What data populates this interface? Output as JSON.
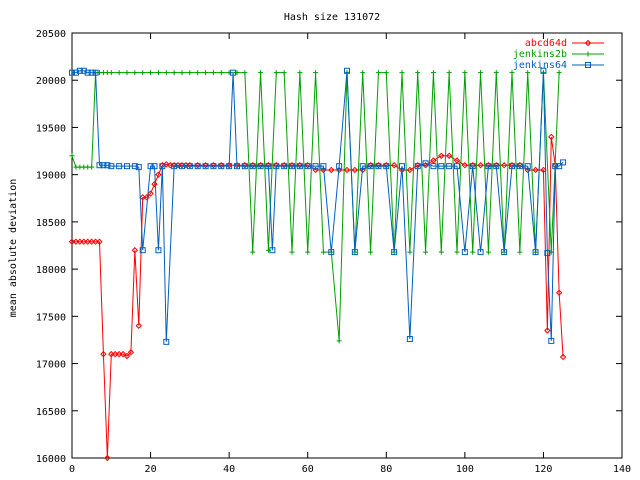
{
  "chart_data": {
    "type": "line",
    "title": "Hash size 131072",
    "xlabel": "",
    "ylabel": "mean absolute deviation",
    "xlim": [
      0,
      140
    ],
    "ylim": [
      16000,
      20500
    ],
    "xticks": [
      0,
      20,
      40,
      60,
      80,
      100,
      120,
      140
    ],
    "yticks": [
      16000,
      16500,
      17000,
      17500,
      18000,
      18500,
      19000,
      19500,
      20000,
      20500
    ],
    "grid": false,
    "legend_position": "top-right",
    "series": [
      {
        "name": "abcd64d",
        "color": "#ff0000",
        "marker": "diamond",
        "x": [
          0,
          1,
          2,
          3,
          4,
          5,
          6,
          7,
          8,
          9,
          10,
          11,
          12,
          13,
          14,
          15,
          16,
          17,
          18,
          19,
          20,
          21,
          22,
          23,
          24,
          25,
          26,
          27,
          28,
          29,
          30,
          32,
          34,
          36,
          38,
          40,
          42,
          44,
          46,
          48,
          50,
          52,
          54,
          56,
          58,
          60,
          62,
          64,
          66,
          68,
          70,
          72,
          74,
          76,
          78,
          80,
          82,
          84,
          86,
          88,
          90,
          92,
          94,
          96,
          98,
          100,
          102,
          104,
          106,
          108,
          110,
          112,
          114,
          116,
          118,
          120,
          121,
          122,
          123,
          124,
          125
        ],
        "values": [
          18290,
          18290,
          18290,
          18290,
          18290,
          18290,
          18290,
          18290,
          17100,
          16000,
          17100,
          17100,
          17100,
          17100,
          17080,
          17120,
          18200,
          17400,
          18760,
          18760,
          18800,
          18900,
          19000,
          19100,
          19110,
          19100,
          19100,
          19100,
          19100,
          19100,
          19100,
          19100,
          19100,
          19100,
          19100,
          19100,
          19100,
          19100,
          19100,
          19100,
          19100,
          19100,
          19100,
          19100,
          19100,
          19100,
          19050,
          19050,
          19050,
          19050,
          19050,
          19050,
          19050,
          19100,
          19100,
          19100,
          19100,
          19050,
          19050,
          19100,
          19100,
          19150,
          19200,
          19200,
          19150,
          19100,
          19100,
          19100,
          19100,
          19100,
          19100,
          19100,
          19100,
          19050,
          19050,
          19050,
          17350,
          19400,
          19100,
          17750,
          17070
        ]
      },
      {
        "name": "jenkins2b",
        "color": "#00a000",
        "marker": "plus",
        "x": [
          0,
          1,
          2,
          3,
          4,
          5,
          6,
          7,
          8,
          9,
          10,
          12,
          14,
          16,
          18,
          20,
          22,
          24,
          26,
          28,
          30,
          32,
          34,
          36,
          38,
          40,
          42,
          44,
          46,
          48,
          50,
          52,
          54,
          56,
          58,
          60,
          62,
          64,
          66,
          68,
          70,
          72,
          74,
          76,
          78,
          80,
          82,
          84,
          86,
          88,
          90,
          92,
          94,
          96,
          98,
          100,
          102,
          104,
          106,
          108,
          110,
          112,
          114,
          116,
          118,
          120,
          122,
          124
        ],
        "values": [
          19200,
          19080,
          19080,
          19080,
          19080,
          19080,
          20080,
          20080,
          20080,
          20080,
          20080,
          20080,
          20080,
          20080,
          20080,
          20080,
          20080,
          20080,
          20080,
          20080,
          20080,
          20080,
          20080,
          20080,
          20080,
          20080,
          20080,
          20080,
          18180,
          20080,
          18200,
          20080,
          20080,
          18180,
          20080,
          18180,
          20080,
          18180,
          18180,
          17240,
          20080,
          18180,
          20080,
          18180,
          20080,
          20080,
          18180,
          20080,
          18180,
          20080,
          18180,
          20080,
          18180,
          20080,
          18180,
          20080,
          18180,
          20080,
          18180,
          20080,
          18180,
          20080,
          18180,
          20080,
          18180,
          20080,
          18180,
          20080
        ]
      },
      {
        "name": "jenkins64",
        "color": "#0060c0",
        "marker": "square",
        "x": [
          0,
          1,
          2,
          3,
          4,
          5,
          6,
          7,
          8,
          9,
          10,
          12,
          14,
          16,
          17,
          18,
          20,
          21,
          22,
          23,
          24,
          26,
          28,
          30,
          32,
          34,
          36,
          38,
          40,
          41,
          42,
          44,
          46,
          48,
          50,
          51,
          52,
          54,
          56,
          58,
          60,
          62,
          64,
          66,
          68,
          70,
          72,
          74,
          76,
          78,
          80,
          82,
          84,
          86,
          88,
          90,
          92,
          94,
          96,
          98,
          100,
          102,
          104,
          106,
          108,
          110,
          112,
          114,
          116,
          118,
          120,
          121,
          122,
          123,
          124,
          125
        ],
        "values": [
          20080,
          20080,
          20100,
          20100,
          20080,
          20080,
          20080,
          19100,
          19100,
          19100,
          19090,
          19090,
          19090,
          19090,
          19080,
          18200,
          19090,
          19090,
          18200,
          19090,
          17230,
          19090,
          19090,
          19090,
          19090,
          19090,
          19090,
          19090,
          19090,
          20080,
          19090,
          19090,
          19090,
          19090,
          19090,
          18200,
          19090,
          19090,
          19090,
          19090,
          19090,
          19090,
          19090,
          18180,
          19090,
          20100,
          18180,
          19090,
          19090,
          19090,
          19090,
          18180,
          19090,
          17260,
          19090,
          19120,
          19090,
          19090,
          19090,
          19090,
          18180,
          19090,
          18180,
          19090,
          19090,
          18180,
          19090,
          19090,
          19090,
          18180,
          20100,
          18170,
          17240,
          19090,
          19090,
          19130
        ]
      }
    ]
  }
}
